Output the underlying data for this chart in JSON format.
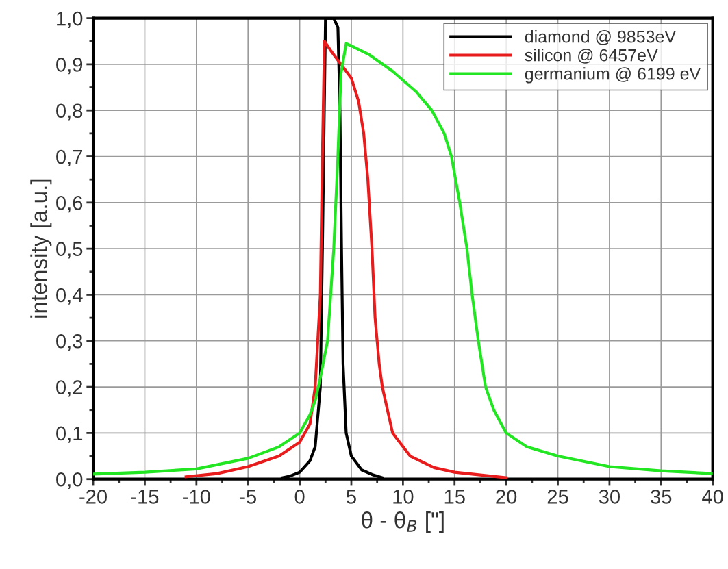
{
  "chart_data": {
    "type": "line",
    "xlabel": "θ - θ$_{B}$ [\"]",
    "ylabel": "intensity [a.u.]",
    "xlim": [
      -20,
      40
    ],
    "xticks": [
      {
        "value": -20,
        "label": "-20"
      },
      {
        "value": -15,
        "label": "-15"
      },
      {
        "value": -10,
        "label": "-10"
      },
      {
        "value": -5,
        "label": "-5"
      },
      0,
      5,
      10,
      15,
      20,
      25,
      30,
      35,
      40
    ],
    "ylim": [
      0,
      1
    ],
    "yticks": [
      {
        "value": 0,
        "label": "0,0"
      },
      {
        "value": 0.1,
        "label": "0,1"
      },
      {
        "value": 0.2,
        "label": "0,2"
      },
      {
        "value": 0.3,
        "label": "0,3"
      },
      {
        "value": 0.4,
        "label": "0,4"
      },
      {
        "value": 0.5,
        "label": "0,5"
      },
      {
        "value": 0.6,
        "label": "0,6"
      },
      {
        "value": 0.7,
        "label": "0,7"
      },
      {
        "value": 0.8,
        "label": "0,8"
      },
      {
        "value": 0.9,
        "label": "0,9"
      },
      {
        "value": 1,
        "label": "1,0"
      }
    ],
    "grid": true,
    "legend": "top right",
    "marker": "none",
    "line_style": "solid",
    "series": [
      {
        "name": "diamond @ 9853eV",
        "color": "#000000",
        "x": [
          -1.7,
          -1,
          0,
          1,
          1.5,
          2,
          2.2,
          2.5,
          3.3,
          3.7,
          3.9,
          4.05,
          4.2,
          4.5,
          5,
          6,
          7,
          8
        ],
        "values": [
          0.003,
          0.006,
          0.015,
          0.04,
          0.07,
          0.2,
          0.5,
          1.0,
          1.0,
          0.98,
          0.8,
          0.5,
          0.25,
          0.1,
          0.05,
          0.02,
          0.01,
          0.003
        ]
      },
      {
        "name": "silicon @ 6457eV",
        "color": "#e81c1c",
        "x": [
          -11,
          -8,
          -5,
          -2,
          0,
          1,
          1.5,
          2,
          2.2,
          2.4,
          3,
          4,
          5,
          5.7,
          6.2,
          6.6,
          7,
          7.3,
          7.7,
          8,
          9,
          10.7,
          13,
          15,
          20
        ],
        "values": [
          0.005,
          0.012,
          0.027,
          0.05,
          0.08,
          0.12,
          0.2,
          0.4,
          0.7,
          0.95,
          0.93,
          0.9,
          0.87,
          0.82,
          0.75,
          0.65,
          0.5,
          0.35,
          0.25,
          0.2,
          0.1,
          0.05,
          0.025,
          0.015,
          0.003
        ]
      },
      {
        "name": "germanium @ 6199 eV",
        "color": "#22e622",
        "x": [
          -20,
          -15,
          -10,
          -5,
          -2,
          0,
          1,
          1.5,
          2,
          2.7,
          3.3,
          3.7,
          4,
          4.5,
          5,
          6.8,
          9,
          11.3,
          12.8,
          14,
          14.7,
          15.5,
          16.2,
          16.7,
          17.3,
          18,
          18.8,
          20,
          22,
          25,
          30,
          35,
          40
        ],
        "values": [
          0.011,
          0.015,
          0.022,
          0.045,
          0.07,
          0.1,
          0.14,
          0.17,
          0.22,
          0.3,
          0.5,
          0.7,
          0.88,
          0.945,
          0.94,
          0.92,
          0.885,
          0.84,
          0.8,
          0.75,
          0.7,
          0.6,
          0.5,
          0.4,
          0.3,
          0.2,
          0.15,
          0.1,
          0.07,
          0.05,
          0.027,
          0.018,
          0.012
        ]
      }
    ]
  }
}
